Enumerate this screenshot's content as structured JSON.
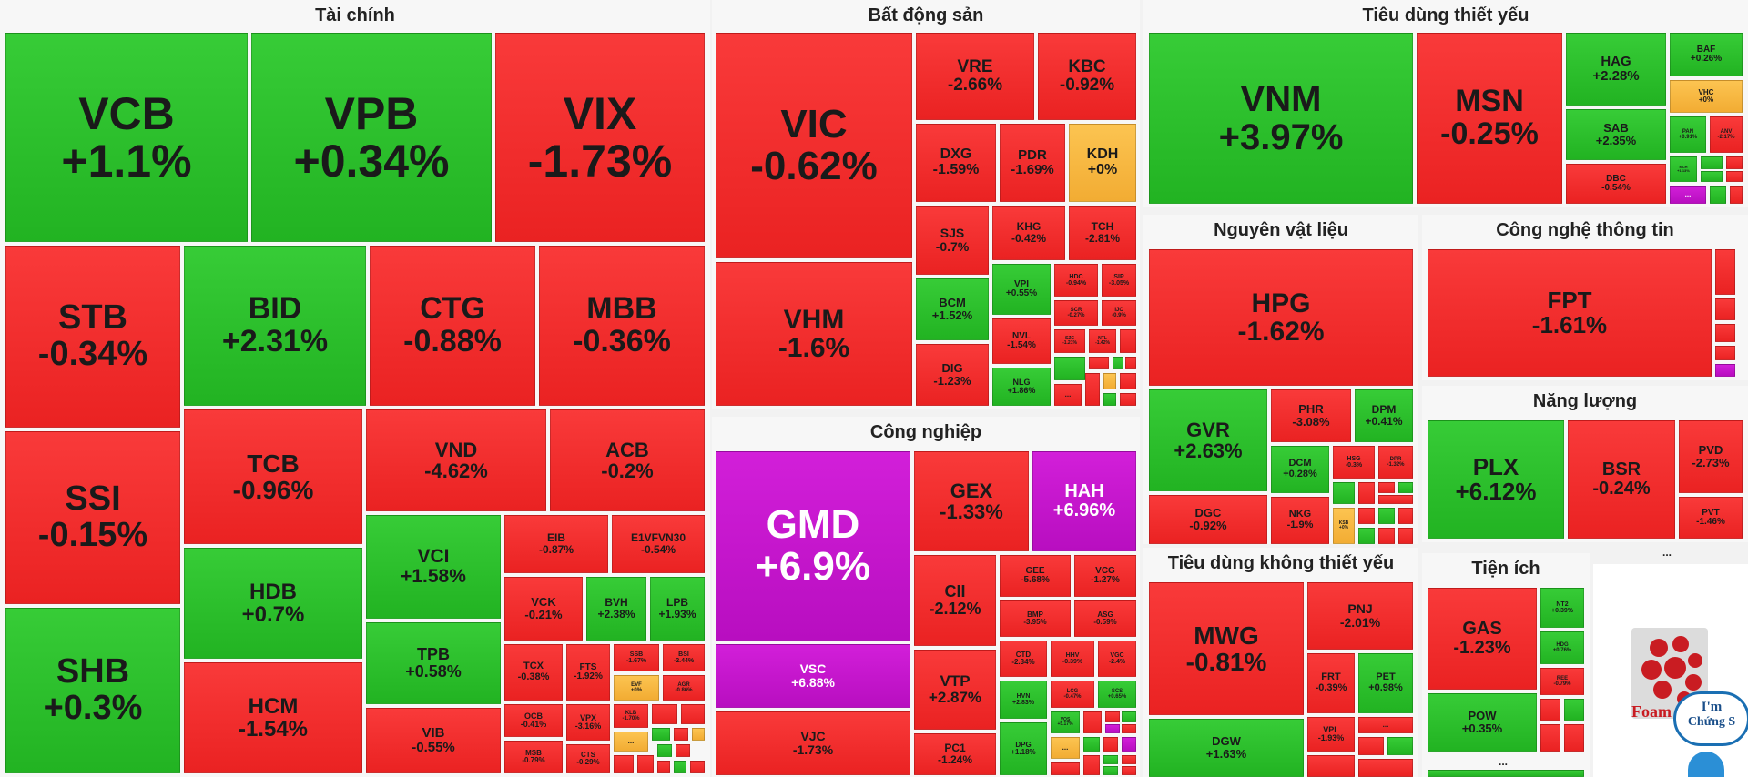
{
  "colors": {
    "down": "#ef2a2a",
    "up": "#27bd27",
    "flat": "#f6b33b",
    "ceiling": "#c514cc"
  },
  "sectors": {
    "tai_chinh": "Tài chính",
    "bat_dong_san": "Bất động sản",
    "tieu_dung_thiet_yeu": "Tiêu dùng thiết yếu",
    "nguyen_vat_lieu": "Nguyên vật liệu",
    "cong_nghe": "Công nghệ thông tin",
    "cong_nghiep": "Công nghiệp",
    "nang_luong": "Năng lượng",
    "tieu_dung_khong": "Tiêu dùng không thiết yếu",
    "tien_ich": "Tiện ích"
  },
  "more": "...",
  "logo": {
    "name": "Foam",
    "bubble1": "I'm",
    "bubble2": "Chứng S"
  },
  "t": {
    "VCB": {
      "s": "VCB",
      "p": "+1.1%"
    },
    "VPB": {
      "s": "VPB",
      "p": "+0.34%"
    },
    "VIX": {
      "s": "VIX",
      "p": "-1.73%"
    },
    "STB": {
      "s": "STB",
      "p": "-0.34%"
    },
    "BID": {
      "s": "BID",
      "p": "+2.31%"
    },
    "CTG": {
      "s": "CTG",
      "p": "-0.88%"
    },
    "MBB": {
      "s": "MBB",
      "p": "-0.36%"
    },
    "SSI": {
      "s": "SSI",
      "p": "-0.15%"
    },
    "TCB": {
      "s": "TCB",
      "p": "-0.96%"
    },
    "VND": {
      "s": "VND",
      "p": "-4.62%"
    },
    "ACB": {
      "s": "ACB",
      "p": "-0.2%"
    },
    "SHB": {
      "s": "SHB",
      "p": "+0.3%"
    },
    "HDB": {
      "s": "HDB",
      "p": "+0.7%"
    },
    "HCM": {
      "s": "HCM",
      "p": "-1.54%"
    },
    "VCI": {
      "s": "VCI",
      "p": "+1.58%"
    },
    "TPB": {
      "s": "TPB",
      "p": "+0.58%"
    },
    "VIB": {
      "s": "VIB",
      "p": "-0.55%"
    },
    "EIB": {
      "s": "EIB",
      "p": "-0.87%"
    },
    "E1VFVN30": {
      "s": "E1VFVN30",
      "p": "-0.54%"
    },
    "VCK": {
      "s": "VCK",
      "p": "-0.21%"
    },
    "BVH": {
      "s": "BVH",
      "p": "+2.38%"
    },
    "LPB": {
      "s": "LPB",
      "p": "+1.93%"
    },
    "TCX": {
      "s": "TCX",
      "p": "-0.38%"
    },
    "FTS": {
      "s": "FTS",
      "p": "-1.92%"
    },
    "SSB": {
      "s": "SSB",
      "p": "-1.67%"
    },
    "BSI": {
      "s": "BSI",
      "p": "-2.44%"
    },
    "EVF": {
      "s": "EVF",
      "p": "+0%"
    },
    "AGR": {
      "s": "AGR",
      "p": "-0.86%"
    },
    "OCB": {
      "s": "OCB",
      "p": "-0.41%"
    },
    "VPX": {
      "s": "VPX",
      "p": "-3.16%"
    },
    "KLB": {
      "s": "KLB",
      "p": "-1.70%"
    },
    "MSB": {
      "s": "MSB",
      "p": "-0.79%"
    },
    "CTS": {
      "s": "CTS",
      "p": "-0.29%"
    },
    "VIC": {
      "s": "VIC",
      "p": "-0.62%"
    },
    "VHM": {
      "s": "VHM",
      "p": "-1.6%"
    },
    "VRE": {
      "s": "VRE",
      "p": "-2.66%"
    },
    "KBC": {
      "s": "KBC",
      "p": "-0.92%"
    },
    "DXG": {
      "s": "DXG",
      "p": "-1.59%"
    },
    "PDR": {
      "s": "PDR",
      "p": "-1.69%"
    },
    "KDH": {
      "s": "KDH",
      "p": "+0%"
    },
    "SJS": {
      "s": "SJS",
      "p": "-0.7%"
    },
    "KHG": {
      "s": "KHG",
      "p": "-0.42%"
    },
    "TCH": {
      "s": "TCH",
      "p": "-2.81%"
    },
    "BCM": {
      "s": "BCM",
      "p": "+1.52%"
    },
    "VPI": {
      "s": "VPI",
      "p": "+0.55%"
    },
    "HDC": {
      "s": "HDC",
      "p": "-0.94%"
    },
    "SIP": {
      "s": "SIP",
      "p": "-3.05%"
    },
    "SCR": {
      "s": "SCR",
      "p": "-0.27%"
    },
    "IJC": {
      "s": "IJC",
      "p": "-0.9%"
    },
    "NVL": {
      "s": "NVL",
      "p": "-1.54%"
    },
    "SZC": {
      "s": "SZC",
      "p": "-1.21%"
    },
    "NTL": {
      "s": "NTL",
      "p": "-1.42%"
    },
    "DIG": {
      "s": "DIG",
      "p": "-1.23%"
    },
    "NLG": {
      "s": "NLG",
      "p": "+1.86%"
    },
    "GMD": {
      "s": "GMD",
      "p": "+6.9%"
    },
    "VSC": {
      "s": "VSC",
      "p": "+6.88%"
    },
    "VJC": {
      "s": "VJC",
      "p": "-1.73%"
    },
    "GEX": {
      "s": "GEX",
      "p": "-1.33%"
    },
    "HAH": {
      "s": "HAH",
      "p": "+6.96%"
    },
    "CII": {
      "s": "CII",
      "p": "-2.12%"
    },
    "GEE": {
      "s": "GEE",
      "p": "-5.68%"
    },
    "VCG": {
      "s": "VCG",
      "p": "-1.27%"
    },
    "BMP": {
      "s": "BMP",
      "p": "-3.95%"
    },
    "ASG": {
      "s": "ASG",
      "p": "-0.59%"
    },
    "VTP": {
      "s": "VTP",
      "p": "+2.87%"
    },
    "CTD": {
      "s": "CTD",
      "p": "-2.34%"
    },
    "HHV": {
      "s": "HHV",
      "p": "-0.39%"
    },
    "VGC": {
      "s": "VGC",
      "p": "-2.4%"
    },
    "HVN": {
      "s": "HVN",
      "p": "+2.83%"
    },
    "LCG": {
      "s": "LCG",
      "p": "-0.47%"
    },
    "SCS": {
      "s": "SCS",
      "p": "+0.65%"
    },
    "PC1": {
      "s": "PC1",
      "p": "-1.24%"
    },
    "DPG": {
      "s": "DPG",
      "p": "+1.18%"
    },
    "VOS": {
      "s": "VOS",
      "p": "+5.17%"
    },
    "VNM": {
      "s": "VNM",
      "p": "+3.97%"
    },
    "MSN": {
      "s": "MSN",
      "p": "-0.25%"
    },
    "HAG": {
      "s": "HAG",
      "p": "+2.28%"
    },
    "BAF": {
      "s": "BAF",
      "p": "+0.26%"
    },
    "VHC": {
      "s": "VHC",
      "p": "+0%"
    },
    "SAB": {
      "s": "SAB",
      "p": "+2.35%"
    },
    "PAN": {
      "s": "PAN",
      "p": "+0.91%"
    },
    "ANV": {
      "s": "ANV",
      "p": "-2.17%"
    },
    "DBC": {
      "s": "DBC",
      "p": "-0.54%"
    },
    "MCH": {
      "s": "MCH",
      "p": "+1.13%"
    },
    "HPG": {
      "s": "HPG",
      "p": "-1.62%"
    },
    "GVR": {
      "s": "GVR",
      "p": "+2.63%"
    },
    "PHR": {
      "s": "PHR",
      "p": "-3.08%"
    },
    "DPM": {
      "s": "DPM",
      "p": "+0.41%"
    },
    "DCM": {
      "s": "DCM",
      "p": "+0.28%"
    },
    "HSG": {
      "s": "HSG",
      "p": "-0.3%"
    },
    "DPR": {
      "s": "DPR",
      "p": "-1.32%"
    },
    "DGC": {
      "s": "DGC",
      "p": "-0.92%"
    },
    "NKG": {
      "s": "NKG",
      "p": "-1.9%"
    },
    "KSB": {
      "s": "KSB",
      "p": "+0%"
    },
    "FPT": {
      "s": "FPT",
      "p": "-1.61%"
    },
    "PLX": {
      "s": "PLX",
      "p": "+6.12%"
    },
    "BSR": {
      "s": "BSR",
      "p": "-0.24%"
    },
    "PVD": {
      "s": "PVD",
      "p": "-2.73%"
    },
    "PVT": {
      "s": "PVT",
      "p": "-1.46%"
    },
    "MWG": {
      "s": "MWG",
      "p": "-0.81%"
    },
    "PNJ": {
      "s": "PNJ",
      "p": "-2.01%"
    },
    "FRT": {
      "s": "FRT",
      "p": "-0.39%"
    },
    "PET": {
      "s": "PET",
      "p": "+0.98%"
    },
    "DGW": {
      "s": "DGW",
      "p": "+1.63%"
    },
    "VPL": {
      "s": "VPL",
      "p": "-1.93%"
    },
    "GAS": {
      "s": "GAS",
      "p": "-1.23%"
    },
    "NT2": {
      "s": "NT2",
      "p": "+0.39%"
    },
    "HDG": {
      "s": "HDG",
      "p": "+0.76%"
    },
    "REE": {
      "s": "REE",
      "p": "-0.79%"
    },
    "POW": {
      "s": "POW",
      "p": "+0.35%"
    }
  }
}
